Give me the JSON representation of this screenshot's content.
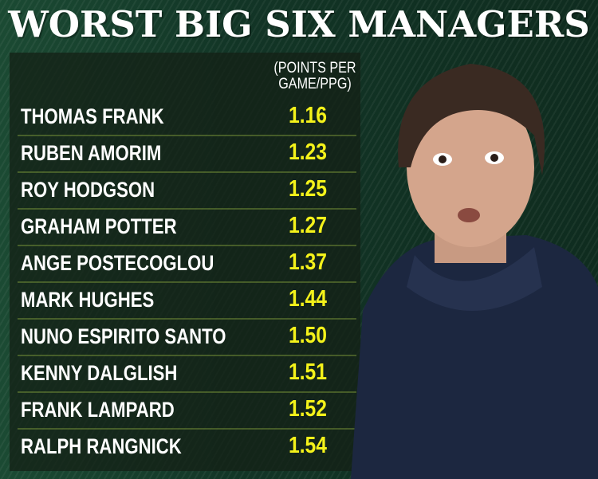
{
  "title": "WORST BIG SIX MANAGERS",
  "column_header": [
    "(POINTS PER",
    "GAME/PPG)"
  ],
  "colors": {
    "background": "#123526",
    "value_text": "#f4f21a",
    "name_text": "#ffffff"
  },
  "chart_data": {
    "type": "table",
    "title": "WORST BIG SIX MANAGERS",
    "columns": [
      "",
      "(POINTS PER GAME/PPG)"
    ],
    "rows": [
      {
        "name": "THOMAS FRANK",
        "value": "1.16"
      },
      {
        "name": "RUBEN AMORIM",
        "value": "1.23"
      },
      {
        "name": "ROY HODGSON",
        "value": "1.25"
      },
      {
        "name": "GRAHAM POTTER",
        "value": "1.27"
      },
      {
        "name": "ANGE POSTECOGLOU",
        "value": "1.37"
      },
      {
        "name": "MARK HUGHES",
        "value": "1.44"
      },
      {
        "name": "NUNO ESPIRITO SANTO",
        "value": "1.50"
      },
      {
        "name": "KENNY DALGLISH",
        "value": "1.51"
      },
      {
        "name": "FRANK LAMPARD",
        "value": "1.52"
      },
      {
        "name": "RALPH RANGNICK",
        "value": "1.54"
      }
    ]
  }
}
